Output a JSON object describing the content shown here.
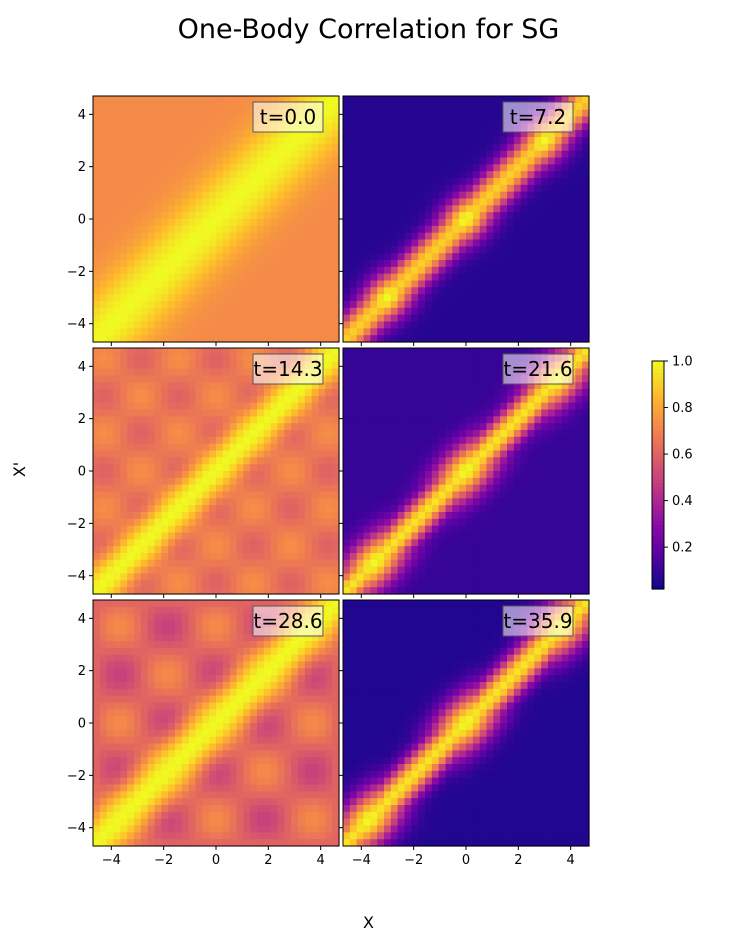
{
  "chart_data": {
    "type": "heatmap",
    "title": "One-Body Correlation for SG",
    "xlabel": "X",
    "ylabel": "X'",
    "colormap": "plasma",
    "colorbar": {
      "range": [
        0.02,
        1.0
      ],
      "ticks": [
        0.2,
        0.4,
        0.6,
        0.8,
        1.0
      ],
      "tick_labels": [
        "0.2",
        "0.4",
        "0.6",
        "0.8",
        "1.0"
      ]
    },
    "xlim": [
      -4.7,
      4.7
    ],
    "ylim": [
      -4.7,
      4.7
    ],
    "xticks": [
      -4,
      -2,
      0,
      2,
      4
    ],
    "yticks": [
      -4,
      -2,
      0,
      2,
      4
    ],
    "xtick_labels": [
      "−4",
      "−2",
      "0",
      "2",
      "4"
    ],
    "ytick_labels": [
      "−4",
      "−2",
      "0",
      "2",
      "4"
    ],
    "panels": [
      {
        "label": "t=0.0",
        "t": 0.0,
        "description": "bright yellow diagonal band ~1.0 on uniform orange background ~0.7"
      },
      {
        "label": "t=7.2",
        "t": 7.2,
        "description": "yellow diagonal blobs ~1.0 at x=x' near 0 and ±3, dark purple blocks ~0.05 off-diagonal"
      },
      {
        "label": "t=14.3",
        "t": 14.3,
        "description": "yellow diagonal ~1.0 on mottled orange-pink background ~0.6-0.75"
      },
      {
        "label": "t=21.6",
        "t": 21.6,
        "description": "yellow diagonal ~1.0 with lobes, off-diagonal dark purple ~0.08"
      },
      {
        "label": "t=28.6",
        "t": 28.6,
        "description": "yellow diagonal ~1.0 on mottled magenta-orange background ~0.5-0.75"
      },
      {
        "label": "t=35.9",
        "t": 35.9,
        "description": "yellow diagonal ~1.0 with lobes, off-diagonal dark purple ~0.05"
      }
    ]
  }
}
